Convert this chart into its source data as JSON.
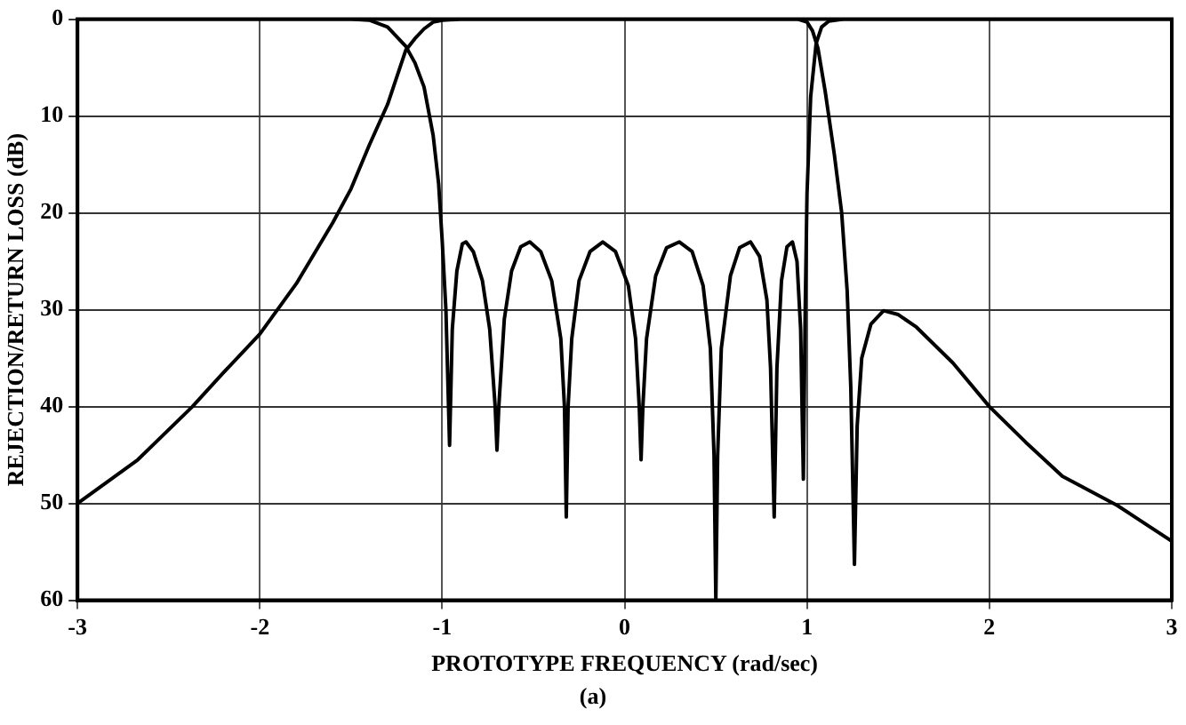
{
  "chart_data": {
    "type": "line",
    "xlabel": "PROTOTYPE FREQUENCY (rad/sec)",
    "ylabel": "REJECTION/RETURN LOSS (dB)",
    "annotations": [
      "(a)"
    ],
    "xlim": [
      -3,
      3
    ],
    "xticks": [
      -3,
      -2,
      -1,
      0,
      1,
      2,
      3
    ],
    "ylim": [
      60,
      0
    ],
    "yticks": [
      0,
      10,
      20,
      30,
      40,
      50,
      60
    ],
    "grid": true,
    "marker": "none",
    "line_style": "solid",
    "series": [
      {
        "color": "#000000",
        "x": [
          -3,
          -2.67,
          -2.37,
          -2.2,
          -2,
          -1.8,
          -1.6,
          -1.5,
          -1.4,
          -1.3,
          -1.2,
          -1.15,
          -1.1,
          -1.05,
          -1.0,
          -0.9,
          0.95,
          1.0,
          1.03,
          1.06,
          1.1,
          1.15,
          1.19,
          1.22,
          1.24,
          1.26,
          1.275,
          1.3,
          1.35,
          1.42,
          1.5,
          1.6,
          1.8,
          2.0,
          2.2,
          2.4,
          2.7,
          3.0
        ],
        "values": [
          50,
          45.5,
          40,
          36.5,
          32.5,
          27.3,
          21,
          17.5,
          13,
          8.8,
          3.2,
          2,
          1,
          0.3,
          0.1,
          0,
          0,
          0.3,
          1.2,
          3,
          7.5,
          14,
          20,
          28,
          38,
          56.3,
          42,
          35,
          31.5,
          30.1,
          30.5,
          31.8,
          35.5,
          40,
          43.7,
          47.2,
          50.2,
          53.9
        ]
      },
      {
        "color": "#000000",
        "x": [
          -3,
          -1.5,
          -1.4,
          -1.3,
          -1.2,
          -1.15,
          -1.1,
          -1.05,
          -1.02,
          -1.0,
          -0.98,
          -0.96,
          -0.945,
          -0.92,
          -0.89,
          -0.87,
          -0.83,
          -0.78,
          -0.74,
          -0.71,
          -0.7,
          -0.69,
          -0.66,
          -0.62,
          -0.57,
          -0.52,
          -0.46,
          -0.4,
          -0.35,
          -0.33,
          -0.32,
          -0.31,
          -0.29,
          -0.25,
          -0.19,
          -0.12,
          -0.05,
          0.02,
          0.06,
          0.08,
          0.09,
          0.1,
          0.12,
          0.17,
          0.23,
          0.3,
          0.37,
          0.43,
          0.47,
          0.49,
          0.5,
          0.51,
          0.53,
          0.58,
          0.63,
          0.69,
          0.74,
          0.78,
          0.8,
          0.82,
          0.835,
          0.86,
          0.89,
          0.92,
          0.945,
          0.965,
          0.98,
          0.99,
          1.0,
          1.02,
          1.05,
          1.08,
          1.12,
          1.2,
          3
        ],
        "values": [
          0,
          0,
          0.1,
          0.8,
          2.8,
          4.5,
          7,
          12,
          17,
          23,
          30,
          44,
          32,
          26,
          23.2,
          23,
          24,
          27,
          32,
          40,
          44.5,
          40,
          31,
          26,
          23.5,
          23,
          24,
          27,
          33,
          40,
          51.4,
          40,
          33,
          27,
          24,
          23,
          24,
          27.5,
          33,
          40,
          45.5,
          40,
          33,
          26.5,
          23.6,
          23,
          24,
          27.5,
          34,
          45,
          60,
          45,
          34,
          26.5,
          23.6,
          23,
          24.5,
          29,
          36,
          51.4,
          36,
          27,
          23.5,
          23,
          25,
          32,
          47.5,
          30,
          18,
          8,
          2.5,
          0.8,
          0.2,
          0,
          0
        ]
      }
    ]
  }
}
